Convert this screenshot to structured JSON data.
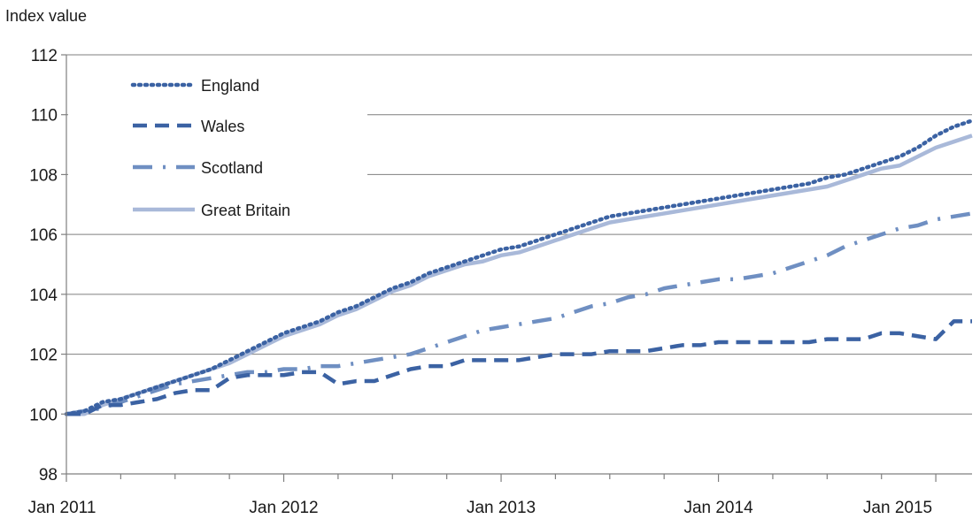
{
  "chart_data": {
    "type": "line",
    "title": "",
    "ylabel": "Index value",
    "xlabel": "",
    "ylim": [
      98,
      112
    ],
    "yticks": [
      98,
      100,
      102,
      104,
      106,
      108,
      110,
      112
    ],
    "x_start": "Jan 2011",
    "x_end": "Mar 2015",
    "x_tick_labels": [
      "Jan 2011",
      "Jan 2012",
      "Jan 2013",
      "Jan 2014",
      "Jan 2015"
    ],
    "x_tick_label_months": [
      0,
      12,
      24,
      36,
      48
    ],
    "grid": "horizontal",
    "legend_placement": "top-left",
    "series": [
      {
        "name": "England",
        "color": "#3b62a3",
        "style": "dotted",
        "values": [
          100.0,
          100.1,
          100.4,
          100.5,
          100.7,
          100.9,
          101.1,
          101.3,
          101.5,
          101.8,
          102.1,
          102.4,
          102.7,
          102.9,
          103.1,
          103.4,
          103.6,
          103.9,
          104.2,
          104.4,
          104.7,
          104.9,
          105.1,
          105.3,
          105.5,
          105.6,
          105.8,
          106.0,
          106.2,
          106.4,
          106.6,
          106.7,
          106.8,
          106.9,
          107.0,
          107.1,
          107.2,
          107.3,
          107.4,
          107.5,
          107.6,
          107.7,
          107.9,
          108.0,
          108.2,
          108.4,
          108.6,
          108.9,
          109.3,
          109.6,
          109.8
        ]
      },
      {
        "name": "Wales",
        "color": "#3b62a3",
        "style": "dashed",
        "values": [
          100.0,
          100.0,
          100.3,
          100.3,
          100.4,
          100.5,
          100.7,
          100.8,
          100.8,
          101.2,
          101.3,
          101.3,
          101.3,
          101.4,
          101.4,
          101.0,
          101.1,
          101.1,
          101.3,
          101.5,
          101.6,
          101.6,
          101.8,
          101.8,
          101.8,
          101.8,
          101.9,
          102.0,
          102.0,
          102.0,
          102.1,
          102.1,
          102.1,
          102.2,
          102.3,
          102.3,
          102.4,
          102.4,
          102.4,
          102.4,
          102.4,
          102.4,
          102.5,
          102.5,
          102.5,
          102.7,
          102.7,
          102.6,
          102.5,
          103.1,
          103.1
        ]
      },
      {
        "name": "Scotland",
        "color": "#6f8fc2",
        "style": "dashdot",
        "values": [
          100.0,
          100.1,
          100.2,
          100.4,
          100.6,
          100.8,
          101.0,
          101.1,
          101.2,
          101.3,
          101.4,
          101.4,
          101.5,
          101.5,
          101.6,
          101.6,
          101.7,
          101.8,
          101.9,
          102.0,
          102.2,
          102.4,
          102.6,
          102.8,
          102.9,
          103.0,
          103.1,
          103.2,
          103.4,
          103.6,
          103.7,
          103.9,
          104.0,
          104.2,
          104.3,
          104.4,
          104.5,
          104.5,
          104.6,
          104.7,
          104.9,
          105.1,
          105.3,
          105.6,
          105.8,
          106.0,
          106.2,
          106.3,
          106.5,
          106.6,
          106.7
        ]
      },
      {
        "name": "Great Britain",
        "color": "#a9b9d9",
        "style": "solid",
        "values": [
          100.0,
          100.0,
          100.3,
          100.5,
          100.7,
          100.9,
          101.1,
          101.3,
          101.5,
          101.7,
          102.0,
          102.3,
          102.6,
          102.8,
          103.0,
          103.3,
          103.5,
          103.8,
          104.1,
          104.3,
          104.6,
          104.8,
          105.0,
          105.1,
          105.3,
          105.4,
          105.6,
          105.8,
          106.0,
          106.2,
          106.4,
          106.5,
          106.6,
          106.7,
          106.8,
          106.9,
          107.0,
          107.1,
          107.2,
          107.3,
          107.4,
          107.5,
          107.6,
          107.8,
          108.0,
          108.2,
          108.3,
          108.6,
          108.9,
          109.1,
          109.3
        ]
      }
    ]
  }
}
